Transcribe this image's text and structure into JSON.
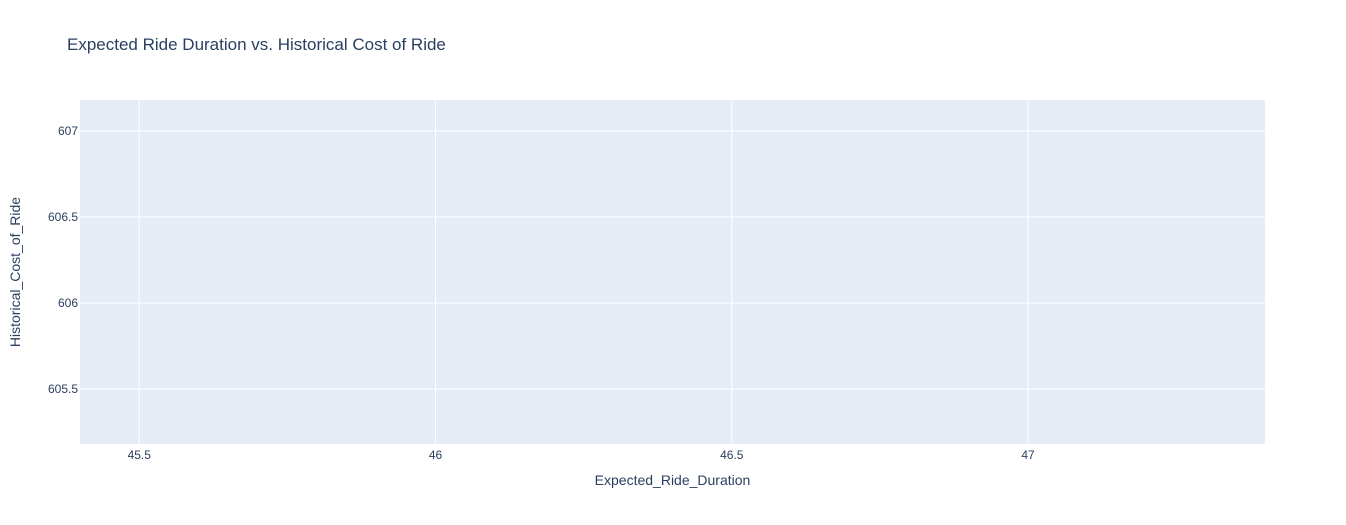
{
  "chart_data": {
    "type": "scatter",
    "title": "Expected Ride Duration vs. Historical Cost of Ride",
    "xlabel": "Expected_Ride_Duration",
    "ylabel": "Historical_Cost_of_Ride",
    "xlim": [
      45.4,
      47.4
    ],
    "ylim": [
      605.18,
      607.18
    ],
    "x_ticks": [
      45.5,
      46,
      46.5,
      47
    ],
    "x_tick_labels": [
      "45.5",
      "46",
      "46.5",
      "47"
    ],
    "y_ticks": [
      605.5,
      606,
      606.5,
      607
    ],
    "y_tick_labels": [
      "605.5",
      "606",
      "606.5",
      "607"
    ],
    "grid": true,
    "series": [
      {
        "x": [],
        "y": []
      }
    ],
    "colors": {
      "plot_background": "#e5ecf6",
      "grid": "#ffffff",
      "text": "#2a3f5f",
      "marker": "#636efa"
    }
  }
}
